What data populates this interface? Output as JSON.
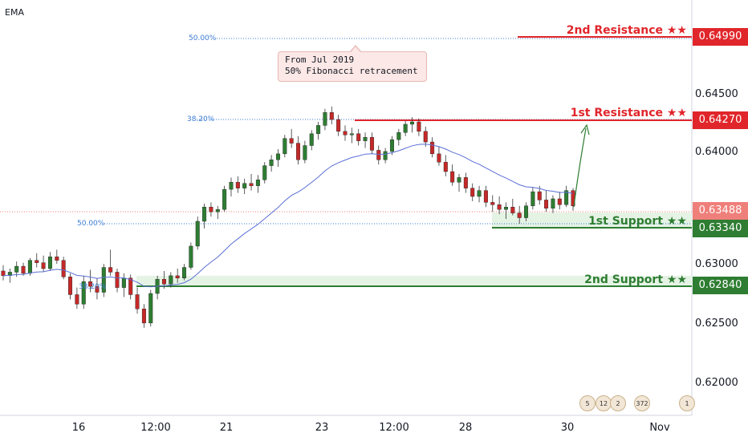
{
  "indicator_label": "EMA",
  "callout": {
    "line1": "From Jul 2019",
    "line2": "50% Fibonacci retracement"
  },
  "levels": {
    "res2": {
      "label": "2nd Resistance ★★",
      "price": "0.64990",
      "color": "#e0262b",
      "value": 0.6499
    },
    "res1": {
      "label": "1st Resistance ★★",
      "price": "0.64270",
      "color": "#e0262b",
      "value": 0.6427
    },
    "current": {
      "price": "0.63488",
      "color": "#ef7f7a",
      "value": 0.63488
    },
    "sup1": {
      "label": "1st Support ★★",
      "price": "0.63340",
      "color": "#2e7d32",
      "value": 0.6334
    },
    "sup2": {
      "label": "2nd Support ★★",
      "price": "0.62840",
      "color": "#2e7d32",
      "value": 0.6284
    }
  },
  "fib_labels": {
    "top50": "50.00%",
    "r382": "38.20%",
    "mid50": "50.00%",
    "low": "38.20%"
  },
  "price_axis": [
    "0.64500",
    "0.64000",
    "0.63000",
    "0.62500",
    "0.62000"
  ],
  "time_axis": [
    "16",
    "12:00",
    "21",
    "23",
    "12:00",
    "28",
    "30",
    "Nov"
  ],
  "event_icons": [
    "5",
    "12",
    "2",
    "372",
    "1"
  ],
  "chart_data": {
    "type": "candlestick",
    "ylim": [
      0.6172,
      0.6523
    ],
    "series": [
      {
        "name": "EMA",
        "color": "#5b6fd6"
      }
    ],
    "candles": [
      [
        0.6294,
        0.6299,
        0.6286,
        0.629
      ],
      [
        0.629,
        0.6296,
        0.6284,
        0.6293
      ],
      [
        0.6293,
        0.6302,
        0.6289,
        0.6298
      ],
      [
        0.6298,
        0.6301,
        0.629,
        0.6292
      ],
      [
        0.6292,
        0.6305,
        0.629,
        0.6303
      ],
      [
        0.6303,
        0.6309,
        0.6297,
        0.6301
      ],
      [
        0.6301,
        0.6307,
        0.6293,
        0.6296
      ],
      [
        0.6296,
        0.631,
        0.6294,
        0.6306
      ],
      [
        0.6306,
        0.6312,
        0.63,
        0.6303
      ],
      [
        0.6303,
        0.6306,
        0.6287,
        0.6289
      ],
      [
        0.6289,
        0.6292,
        0.627,
        0.6274
      ],
      [
        0.6274,
        0.628,
        0.6262,
        0.6266
      ],
      [
        0.6266,
        0.629,
        0.6262,
        0.6285
      ],
      [
        0.6285,
        0.6295,
        0.6276,
        0.6281
      ],
      [
        0.6281,
        0.6288,
        0.627,
        0.6276
      ],
      [
        0.6276,
        0.63,
        0.6272,
        0.6297
      ],
      [
        0.6297,
        0.6312,
        0.629,
        0.6293
      ],
      [
        0.6293,
        0.6296,
        0.6276,
        0.628
      ],
      [
        0.628,
        0.6292,
        0.6272,
        0.6288
      ],
      [
        0.6288,
        0.6291,
        0.627,
        0.6274
      ],
      [
        0.6274,
        0.628,
        0.6258,
        0.6262
      ],
      [
        0.6262,
        0.6266,
        0.6246,
        0.625
      ],
      [
        0.625,
        0.6278,
        0.6247,
        0.6275
      ],
      [
        0.6275,
        0.629,
        0.627,
        0.6287
      ],
      [
        0.6287,
        0.6294,
        0.6279,
        0.6283
      ],
      [
        0.6283,
        0.6293,
        0.628,
        0.629
      ],
      [
        0.629,
        0.6296,
        0.6284,
        0.6288
      ],
      [
        0.6288,
        0.63,
        0.6286,
        0.6297
      ],
      [
        0.6297,
        0.6318,
        0.6295,
        0.6315
      ],
      [
        0.6315,
        0.634,
        0.6312,
        0.6336
      ],
      [
        0.6336,
        0.6351,
        0.633,
        0.6348
      ],
      [
        0.6348,
        0.6352,
        0.634,
        0.6344
      ],
      [
        0.6344,
        0.6349,
        0.6338,
        0.6346
      ],
      [
        0.6346,
        0.6366,
        0.6344,
        0.6363
      ],
      [
        0.6363,
        0.6373,
        0.6357,
        0.6369
      ],
      [
        0.6369,
        0.6374,
        0.636,
        0.6364
      ],
      [
        0.6364,
        0.6372,
        0.6359,
        0.6368
      ],
      [
        0.6368,
        0.6376,
        0.6362,
        0.6366
      ],
      [
        0.6366,
        0.6375,
        0.636,
        0.6371
      ],
      [
        0.6371,
        0.6386,
        0.6368,
        0.6383
      ],
      [
        0.6383,
        0.6392,
        0.6378,
        0.6388
      ],
      [
        0.6388,
        0.6397,
        0.6382,
        0.6393
      ],
      [
        0.6393,
        0.6409,
        0.639,
        0.6406
      ],
      [
        0.6406,
        0.6414,
        0.6398,
        0.6402
      ],
      [
        0.6402,
        0.6408,
        0.6384,
        0.6388
      ],
      [
        0.6388,
        0.6404,
        0.6385,
        0.64
      ],
      [
        0.64,
        0.6413,
        0.6396,
        0.641
      ],
      [
        0.641,
        0.642,
        0.6405,
        0.6417
      ],
      [
        0.6417,
        0.6431,
        0.6413,
        0.6428
      ],
      [
        0.6428,
        0.6433,
        0.6418,
        0.6422
      ],
      [
        0.6422,
        0.6426,
        0.6408,
        0.6412
      ],
      [
        0.6412,
        0.6417,
        0.6404,
        0.6409
      ],
      [
        0.6409,
        0.6415,
        0.6402,
        0.641
      ],
      [
        0.641,
        0.6414,
        0.64,
        0.6404
      ],
      [
        0.6404,
        0.6411,
        0.6398,
        0.6407
      ],
      [
        0.6407,
        0.6411,
        0.6393,
        0.6396
      ],
      [
        0.6396,
        0.64,
        0.6384,
        0.6388
      ],
      [
        0.6388,
        0.6398,
        0.6385,
        0.6395
      ],
      [
        0.6395,
        0.6408,
        0.6392,
        0.6405
      ],
      [
        0.6405,
        0.6414,
        0.64,
        0.6411
      ],
      [
        0.6411,
        0.6421,
        0.6408,
        0.6418
      ],
      [
        0.6418,
        0.6424,
        0.6411,
        0.642
      ],
      [
        0.642,
        0.6423,
        0.6408,
        0.6412
      ],
      [
        0.6412,
        0.6416,
        0.6399,
        0.6403
      ],
      [
        0.6403,
        0.6407,
        0.639,
        0.6393
      ],
      [
        0.6393,
        0.6399,
        0.6383,
        0.6386
      ],
      [
        0.6386,
        0.6392,
        0.6374,
        0.6378
      ],
      [
        0.6378,
        0.6384,
        0.6366,
        0.6369
      ],
      [
        0.6369,
        0.6376,
        0.6361,
        0.6373
      ],
      [
        0.6373,
        0.6377,
        0.636,
        0.6364
      ],
      [
        0.6364,
        0.6368,
        0.6353,
        0.6357
      ],
      [
        0.6357,
        0.6366,
        0.6352,
        0.6362
      ],
      [
        0.6362,
        0.6366,
        0.6348,
        0.6352
      ],
      [
        0.6352,
        0.6358,
        0.6344,
        0.635
      ],
      [
        0.635,
        0.6357,
        0.6342,
        0.6346
      ],
      [
        0.6346,
        0.6352,
        0.6338,
        0.6348
      ],
      [
        0.6348,
        0.6355,
        0.6341,
        0.6343
      ],
      [
        0.6343,
        0.6349,
        0.6334,
        0.6339
      ],
      [
        0.6339,
        0.6352,
        0.6336,
        0.6349
      ],
      [
        0.6349,
        0.6365,
        0.6346,
        0.6361
      ],
      [
        0.6361,
        0.6366,
        0.635,
        0.6354
      ],
      [
        0.6354,
        0.6362,
        0.6344,
        0.6347
      ],
      [
        0.6347,
        0.6358,
        0.6343,
        0.6355
      ],
      [
        0.6355,
        0.6361,
        0.6346,
        0.635
      ],
      [
        0.635,
        0.6366,
        0.6348,
        0.6362
      ],
      [
        0.6362,
        0.6364,
        0.6345,
        0.6349
      ]
    ]
  }
}
